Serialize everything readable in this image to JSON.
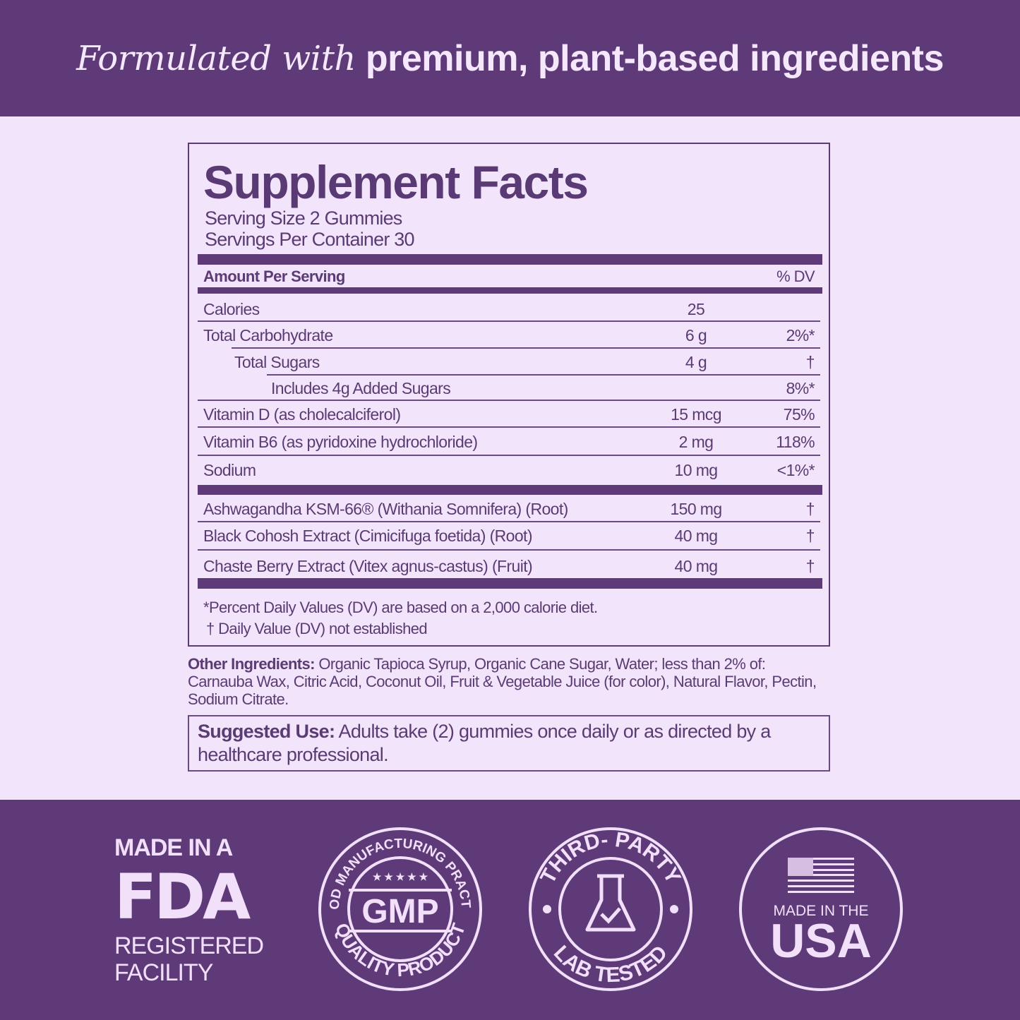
{
  "banner": {
    "italic": "Formulated with",
    "bold": "premium, plant-based ingredients"
  },
  "facts": {
    "title": "Supplement Facts",
    "serving_size": "Serving Size 2 Gummies",
    "servings_per_container": "Servings Per Container 30",
    "amount_header": "Amount Per Serving",
    "dv_header": "% DV",
    "rows": [
      {
        "name": "Calories",
        "amount": "25",
        "dv": ""
      },
      {
        "name": "Total Carbohydrate",
        "amount": "6 g",
        "dv": "2%*"
      },
      {
        "name": "Total Sugars",
        "amount": "4 g",
        "dv": "†"
      },
      {
        "name": "Includes 4g Added Sugars",
        "amount": "",
        "dv": "8%*"
      },
      {
        "name": "Vitamin D (as cholecalciferol)",
        "amount": "15 mcg",
        "dv": "75%"
      },
      {
        "name": "Vitamin B6 (as pyridoxine hydrochloride)",
        "amount": "2 mg",
        "dv": "118%"
      },
      {
        "name": "Sodium",
        "amount": "10 mg",
        "dv": "<1%*"
      }
    ],
    "botanicals": [
      {
        "name": "Ashwagandha KSM-66® (Withania Somnifera) (Root)",
        "amount": "150 mg",
        "dv": "†"
      },
      {
        "name": "Black Cohosh Extract (Cimicifuga foetida) (Root)",
        "amount": "40 mg",
        "dv": "†"
      },
      {
        "name": "Chaste Berry Extract (Vitex agnus-castus) (Fruit)",
        "amount": "40 mg",
        "dv": "†"
      }
    ],
    "footnote1": "*Percent Daily Values (DV) are based on a 2,000 calorie diet.",
    "footnote2": "† Daily Value (DV) not established"
  },
  "other": {
    "label": "Other Ingredients:",
    "text": " Organic Tapioca Syrup, Organic Cane Sugar, Water; less than 2% of: Carnauba Wax, Citric Acid, Coconut Oil, Fruit & Vegetable Juice (for color), Natural Flavor, Pectin, Sodium Citrate."
  },
  "suggested": {
    "label": "Suggested Use:",
    "text": " Adults take (2) gummies once daily or as directed by a healthcare professional."
  },
  "badges": {
    "fda": {
      "top": "MADE IN A",
      "logo": "FDA",
      "line1": "REGISTERED",
      "line2": "FACILITY"
    },
    "gmp": {
      "top": "GOOD MANUFACTURING PRACTICE",
      "center": "GMP",
      "bottom": "QUALITY PRODUCT"
    },
    "lab": {
      "top": "THIRD- PARTY",
      "bottom": "LAB TESTED"
    },
    "usa": {
      "line1": "MADE IN THE",
      "line2": "USA"
    }
  },
  "colors": {
    "primary": "#5e3b78",
    "background": "#f2e4fb",
    "badge": "#f2e0fb"
  }
}
